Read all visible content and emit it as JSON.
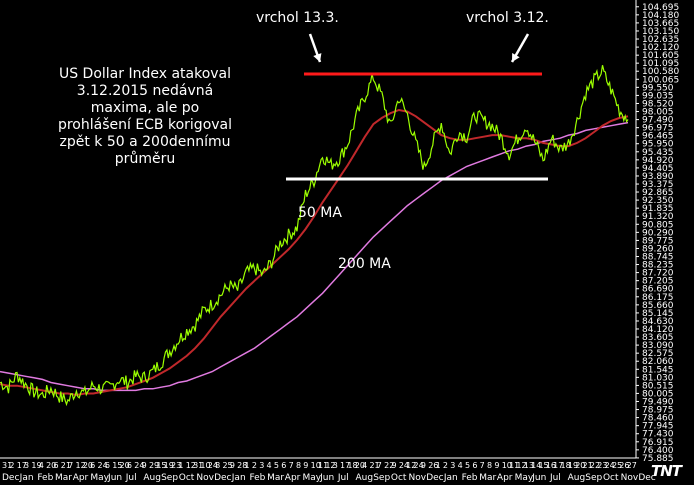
{
  "annotations": {
    "main_text": "US Dollar Index atakoval\n3.12.2015 nedávná\nmaxima, ale po\nprohlášení ECB korigoval\nzpět k 50 a 200dennímu\nprůměru",
    "peak1": "vrchol 13.3.",
    "peak2": "vrchol 3.12.",
    "ma50": "50 MA",
    "ma200": "200 MA"
  },
  "logo": "TNT",
  "colors": {
    "background": "#000000",
    "price": "#9cff00",
    "ma50": "#c0282b",
    "ma200": "#e07ae0",
    "resistance": "#ff1a1a",
    "support": "#ffffff",
    "axis": "#ffffff"
  },
  "chart_data": {
    "type": "line",
    "title": "",
    "ylim": [
      75.88,
      105.0
    ],
    "y_ticks": [
      "104.695",
      "104.180",
      "103.665",
      "103.150",
      "102.635",
      "102.120",
      "101.605",
      "101.095",
      "100.580",
      "100.065",
      "99.550",
      "99.035",
      "98.520",
      "98.005",
      "97.490",
      "96.975",
      "96.465",
      "95.950",
      "95.435",
      "94.920",
      "94.405",
      "93.890",
      "93.375",
      "92.865",
      "92.350",
      "91.835",
      "91.320",
      "90.805",
      "90.290",
      "89.775",
      "89.260",
      "88.745",
      "88.235",
      "87.720",
      "87.205",
      "86.690",
      "86.175",
      "85.660",
      "85.145",
      "84.630",
      "84.120",
      "83.605",
      "83.090",
      "82.575",
      "82.060",
      "81.545",
      "81.030",
      "80.515",
      "80.005",
      "79.490",
      "78.975",
      "78.460",
      "77.945",
      "77.430",
      "76.915",
      "76.400",
      "75.885"
    ],
    "x_month_labels": [
      "Dec",
      "Jan",
      "Feb",
      "Mar",
      "Apr",
      "May",
      "Jun",
      "Jul",
      "Aug",
      "Sep",
      "Oct",
      "Nov",
      "Dec",
      "Jan",
      "Feb",
      "Mar",
      "Apr",
      "May",
      "Jun",
      "Jul",
      "Aug",
      "Sep",
      "Oct",
      "Nov",
      "Dec",
      "Jan",
      "Feb",
      "Mar",
      "Apr",
      "May",
      "Jun",
      "Jul",
      "Aug",
      "Sep",
      "Oct",
      "Nov",
      "Dec"
    ],
    "x_day_labels": [
      "31",
      "2",
      "17",
      "3",
      "19",
      "4",
      "20",
      "6",
      "21",
      "7",
      "12",
      "20",
      "6",
      "24",
      "6",
      "15",
      "20",
      "6",
      "24",
      "9",
      "29",
      "15",
      "19",
      "23",
      "1",
      "12",
      "31",
      "10",
      "24",
      "8",
      "25",
      "9",
      "28",
      "1",
      "2",
      "3",
      "4",
      "5",
      "6",
      "7",
      "8",
      "9",
      "10",
      "11",
      "12",
      "3",
      "17",
      "18",
      "20",
      "4",
      "21",
      "7",
      "22",
      "9",
      "24",
      "12",
      "24",
      "9",
      "26",
      "1",
      "2",
      "3",
      "4",
      "5",
      "6",
      "7",
      "8",
      "9",
      "10",
      "11",
      "12",
      "13",
      "14",
      "15",
      "16",
      "17",
      "18",
      "19",
      "20",
      "21",
      "22",
      "23",
      "24",
      "25",
      "26",
      "27"
    ],
    "series": [
      {
        "values": [
          80.7,
          80.4,
          81.2,
          80.6,
          80.1,
          79.9,
          80.3,
          79.8,
          79.5,
          80.2,
          80.0,
          80.5,
          80.3,
          80.4,
          80.9,
          80.7,
          81.1,
          81.0,
          81.4,
          82.0,
          82.7,
          83.4,
          84.0,
          84.4,
          85.3,
          85.7,
          86.3,
          86.9,
          86.6,
          87.7,
          88.0,
          87.6,
          88.4,
          89.6,
          90.1,
          90.6,
          92.7,
          93.6,
          95.2,
          94.6,
          95.0,
          96.0,
          97.7,
          99.0,
          100.2,
          99.0,
          97.0,
          98.9,
          97.8,
          96.0,
          94.4,
          96.0,
          97.3,
          95.3,
          96.7,
          96.4,
          97.8,
          97.4,
          97.1,
          96.4,
          95.3,
          96.3,
          97.1,
          96.1,
          94.9,
          96.3,
          95.6,
          96.0,
          97.4,
          99.2,
          100.0,
          100.6,
          99.4,
          98.1,
          97.5
        ]
      },
      {
        "name": "50 MA",
        "values": [
          80.6,
          80.5,
          80.5,
          80.4,
          80.3,
          80.2,
          80.1,
          80.0,
          80.0,
          79.9,
          80.0,
          80.0,
          80.1,
          80.2,
          80.3,
          80.4,
          80.6,
          80.8,
          81.0,
          81.3,
          81.6,
          82.0,
          82.4,
          82.9,
          83.5,
          84.2,
          84.9,
          85.5,
          86.1,
          86.7,
          87.2,
          87.7,
          88.2,
          88.7,
          89.2,
          89.8,
          90.5,
          91.3,
          92.2,
          93.0,
          93.8,
          94.6,
          95.5,
          96.4,
          97.2,
          97.6,
          97.9,
          98.1,
          98.0,
          97.7,
          97.3,
          96.9,
          96.5,
          96.3,
          96.2,
          96.2,
          96.3,
          96.4,
          96.5,
          96.5,
          96.4,
          96.3,
          96.3,
          96.2,
          96.0,
          95.9,
          95.8,
          95.8,
          96.0,
          96.3,
          96.7,
          97.1,
          97.4,
          97.6,
          97.7
        ]
      },
      {
        "name": "200 MA",
        "values": [
          81.4,
          81.3,
          81.2,
          81.1,
          81.0,
          80.9,
          80.7,
          80.6,
          80.5,
          80.4,
          80.3,
          80.3,
          80.2,
          80.2,
          80.2,
          80.2,
          80.2,
          80.3,
          80.3,
          80.4,
          80.5,
          80.7,
          80.8,
          81.0,
          81.2,
          81.4,
          81.7,
          82.0,
          82.3,
          82.6,
          82.9,
          83.3,
          83.7,
          84.1,
          84.5,
          84.9,
          85.4,
          85.9,
          86.4,
          87.0,
          87.6,
          88.2,
          88.8,
          89.4,
          90.0,
          90.5,
          91.0,
          91.5,
          92.0,
          92.4,
          92.8,
          93.2,
          93.6,
          93.9,
          94.2,
          94.5,
          94.7,
          94.9,
          95.1,
          95.3,
          95.5,
          95.6,
          95.8,
          95.9,
          96.1,
          96.2,
          96.3,
          96.5,
          96.6,
          96.8,
          96.9,
          97.0,
          97.1,
          97.2,
          97.3
        ]
      }
    ],
    "lines": {
      "resistance": 100.4,
      "support": 93.7
    }
  }
}
